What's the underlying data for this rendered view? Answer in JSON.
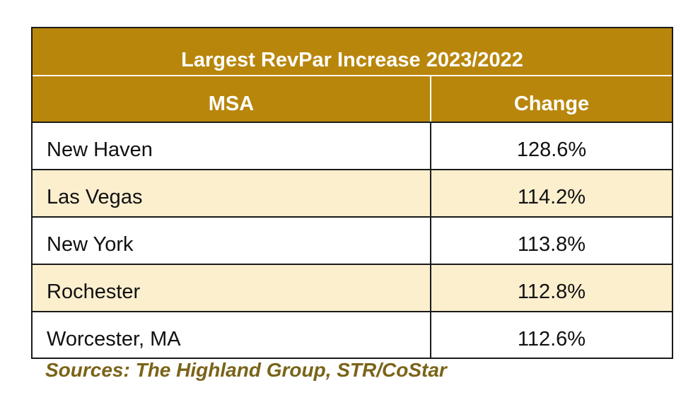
{
  "table": {
    "title": "Largest RevPar Increase 2023/2022",
    "headers": {
      "msa": "MSA",
      "change": "Change"
    },
    "rows": [
      {
        "msa": "New Haven",
        "change": "128.6%"
      },
      {
        "msa": "Las Vegas",
        "change": "114.2%"
      },
      {
        "msa": "New York",
        "change": "113.8%"
      },
      {
        "msa": "Rochester",
        "change": "112.8%"
      },
      {
        "msa": "Worcester, MA",
        "change": "112.6%"
      }
    ]
  },
  "source": "Sources: The Highland Group, STR/CoStar",
  "colors": {
    "header_bg": "#b8860b",
    "alt_row_bg": "#fcefce",
    "source_text": "#7a6418"
  }
}
